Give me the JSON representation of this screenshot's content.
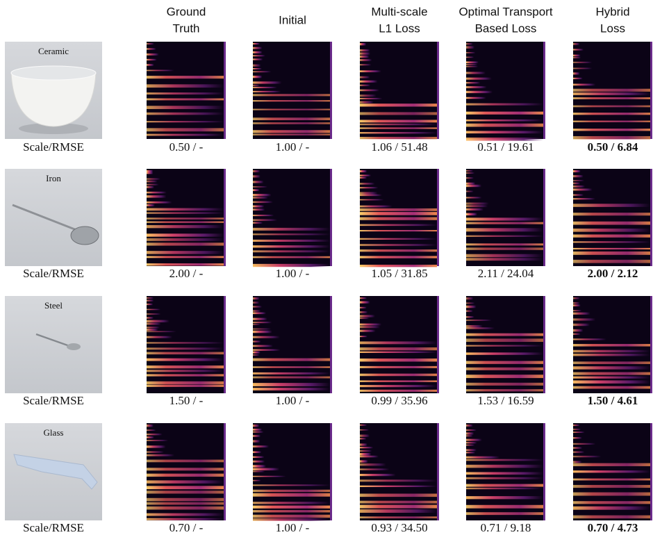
{
  "header": {
    "columns": [
      [
        "Ground",
        "Truth"
      ],
      [
        "Initial"
      ],
      [
        "Multi-scale",
        "L1 Loss"
      ],
      [
        "Optimal Transport",
        "Based Loss"
      ],
      [
        "Hybrid",
        "Loss"
      ]
    ]
  },
  "rows": [
    {
      "material": "Ceramic",
      "row_label": "Scale/RMSE",
      "values": [
        "0.50 / -",
        "1.00 / -",
        "1.06 / 51.48",
        "0.51 / 19.61",
        "0.50 / 6.84"
      ]
    },
    {
      "material": "Iron",
      "row_label": "Scale/RMSE",
      "values": [
        "2.00 / -",
        "1.00 / -",
        "1.05 / 31.85",
        "2.11 / 24.04",
        "2.00 / 2.12"
      ]
    },
    {
      "material": "Steel",
      "row_label": "Scale/RMSE",
      "values": [
        "1.50 / -",
        "1.00 / -",
        "0.99 / 35.96",
        "1.53 / 16.59",
        "1.50 / 4.61"
      ]
    },
    {
      "material": "Glass",
      "row_label": "Scale/RMSE",
      "values": [
        "0.70 / -",
        "1.00 / -",
        "0.93 / 34.50",
        "0.71 / 9.18",
        "0.70 / 4.73"
      ]
    }
  ]
}
